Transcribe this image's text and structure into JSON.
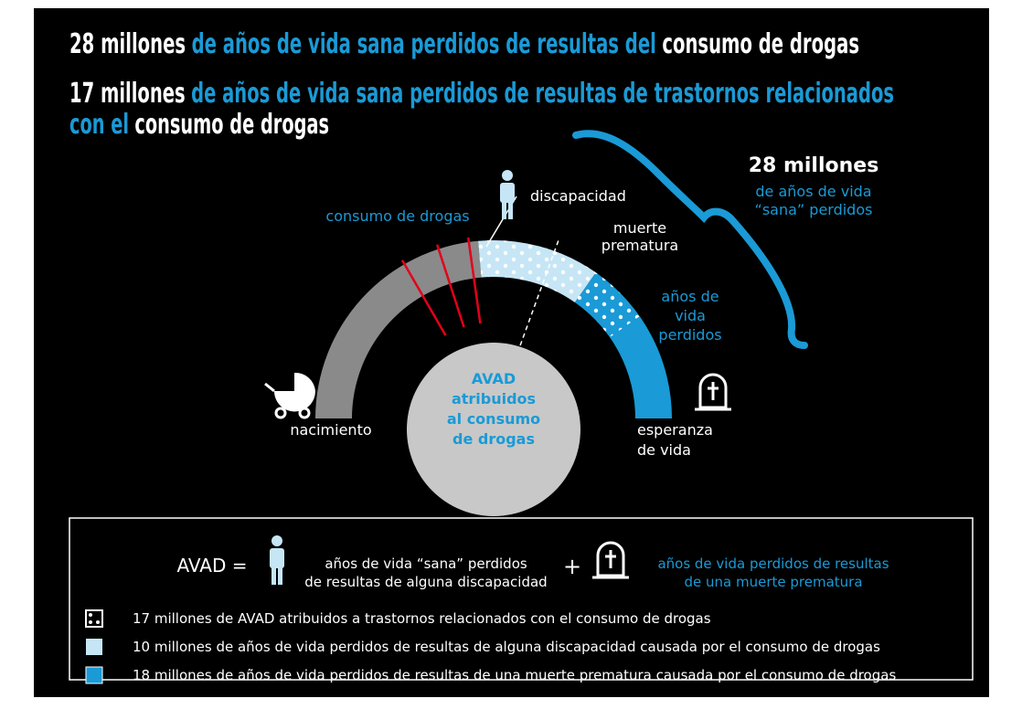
{
  "header": {
    "line1": [
      "28 millones",
      "de años de vida sana perdidos de resultas del",
      "consumo de drogas"
    ],
    "line2": [
      "17 millones",
      "de años de vida sana perdidos de resultas de trastornos relacionados"
    ],
    "line3": [
      "con el",
      "consumo de drogas"
    ]
  },
  "diagram": {
    "drug_use": "consumo de drogas",
    "disability": "discapacidad",
    "premature_death": [
      "muerte",
      "prematura"
    ],
    "years_lost": [
      "años de",
      "vida",
      "perdidos"
    ],
    "center": [
      "AVAD",
      "atribuidos",
      "al consumo",
      "de drogas"
    ],
    "birth": "nacimiento",
    "life_expectancy": [
      "esperanza",
      "de vida"
    ],
    "brace": {
      "total": "28 millones",
      "caption": [
        "de años de vida",
        "“sana” perdidos"
      ]
    }
  },
  "legend": {
    "formula": {
      "lhs": "AVAD =",
      "disability": [
        "años de vida “sana” perdidos",
        "de resultas de alguna discapacidad"
      ],
      "plus": "+",
      "death": [
        "años de vida perdidos de resultas",
        "de una muerte prematura"
      ]
    },
    "items": [
      "17 millones de AVAD atribuidos a trastornos relacionados con el consumo de drogas",
      "10 millones de años de vida perdidos de resultas de alguna discapacidad causada por el consumo de drogas",
      "18 millones de años de vida perdidos de resultas de una muerte prematura causada por el consumo de drogas"
    ]
  }
}
